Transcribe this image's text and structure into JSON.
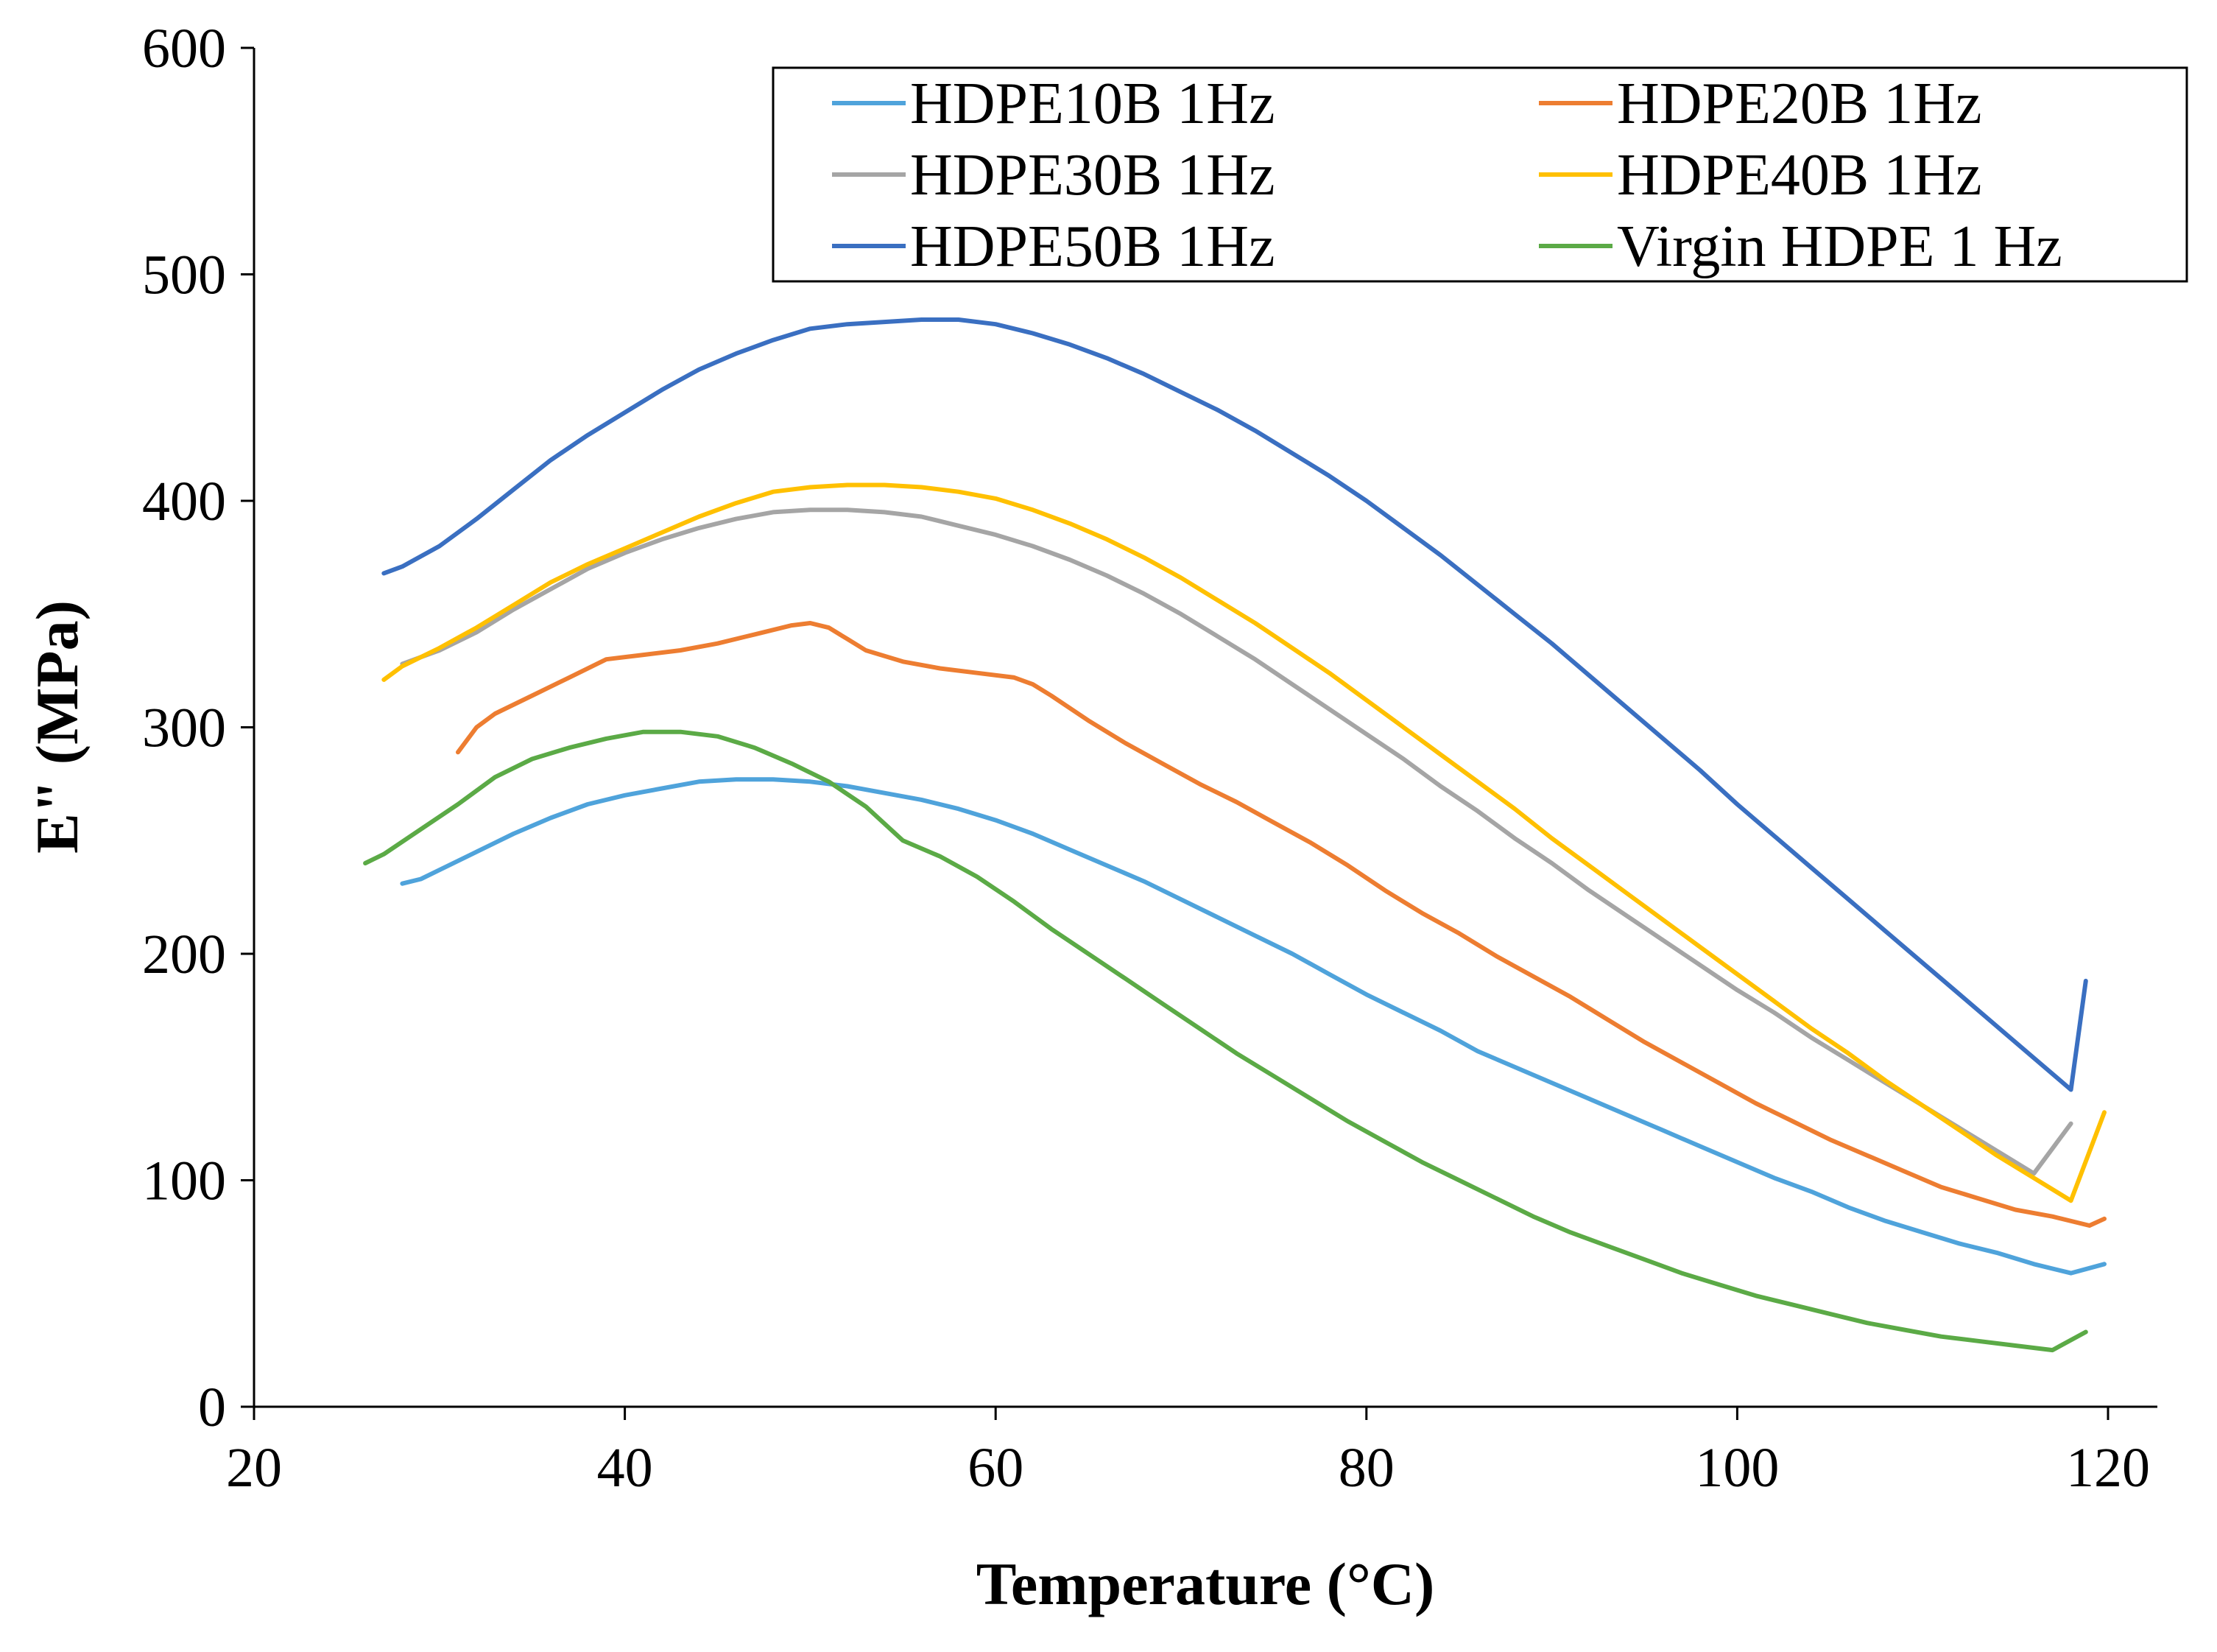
{
  "chart_data": {
    "type": "line",
    "title": "",
    "xlabel": "Temperature (°C)",
    "ylabel": "E\" (MPa)",
    "xlim": [
      20,
      120
    ],
    "ylim": [
      0,
      600
    ],
    "xticks": [
      20,
      40,
      60,
      80,
      100,
      120
    ],
    "yticks": [
      0,
      100,
      200,
      300,
      400,
      500,
      600
    ],
    "grid": false,
    "legend_position": "top-right",
    "series": [
      {
        "name": "HDPE10B 1Hz",
        "color": "#4FA3DB",
        "x": [
          28,
          29,
          30,
          32,
          34,
          36,
          38,
          40,
          42,
          44,
          46,
          48,
          50,
          52,
          54,
          56,
          58,
          60,
          62,
          64,
          66,
          68,
          70,
          72,
          74,
          76,
          78,
          80,
          82,
          84,
          86,
          88,
          90,
          92,
          94,
          96,
          98,
          100,
          102,
          104,
          106,
          108,
          110,
          112,
          114,
          116,
          118,
          119.8
        ],
        "y": [
          231,
          233,
          237,
          245,
          253,
          260,
          266,
          270,
          273,
          276,
          277,
          277,
          276,
          274,
          271,
          268,
          264,
          259,
          253,
          246,
          239,
          232,
          224,
          216,
          208,
          200,
          191,
          182,
          174,
          166,
          157,
          150,
          143,
          136,
          129,
          122,
          115,
          108,
          101,
          95,
          88,
          82,
          77,
          72,
          68,
          63,
          59,
          63
        ]
      },
      {
        "name": "HDPE20B 1Hz",
        "color": "#ED7D31",
        "x": [
          31,
          32,
          33,
          35,
          37,
          39,
          41,
          43,
          45,
          47,
          49,
          50,
          51,
          52,
          53,
          55,
          57,
          59,
          61,
          62,
          63,
          65,
          67,
          69,
          71,
          73,
          75,
          77,
          79,
          81,
          83,
          85,
          87,
          89,
          91,
          93,
          95,
          97,
          99,
          101,
          103,
          105,
          107,
          109,
          111,
          113,
          115,
          117,
          119,
          119.8
        ],
        "y": [
          289,
          300,
          306,
          314,
          322,
          330,
          332,
          334,
          337,
          341,
          345,
          346,
          344,
          339,
          334,
          329,
          326,
          324,
          322,
          319,
          314,
          303,
          293,
          284,
          275,
          267,
          258,
          249,
          239,
          228,
          218,
          209,
          199,
          190,
          181,
          171,
          161,
          152,
          143,
          134,
          126,
          118,
          111,
          104,
          97,
          92,
          87,
          84,
          80,
          83
        ]
      },
      {
        "name": "HDPE30B 1Hz",
        "color": "#A5A5A5",
        "x": [
          28,
          30,
          32,
          34,
          36,
          38,
          40,
          42,
          44,
          46,
          48,
          50,
          52,
          54,
          56,
          58,
          60,
          62,
          64,
          66,
          68,
          70,
          72,
          74,
          76,
          78,
          80,
          82,
          84,
          86,
          88,
          90,
          92,
          94,
          96,
          98,
          100,
          102,
          104,
          106,
          108,
          110,
          112,
          114,
          116,
          118
        ],
        "y": [
          328,
          334,
          342,
          352,
          361,
          370,
          377,
          383,
          388,
          392,
          395,
          396,
          396,
          395,
          393,
          389,
          385,
          380,
          374,
          367,
          359,
          350,
          340,
          330,
          319,
          308,
          297,
          286,
          274,
          263,
          251,
          240,
          228,
          217,
          206,
          195,
          184,
          174,
          163,
          153,
          143,
          133,
          123,
          113,
          103,
          125
        ]
      },
      {
        "name": "HDPE40B 1Hz",
        "color": "#FFC000",
        "x": [
          27,
          28,
          30,
          32,
          34,
          36,
          38,
          40,
          42,
          44,
          46,
          48,
          50,
          52,
          54,
          56,
          58,
          60,
          62,
          64,
          66,
          68,
          70,
          72,
          74,
          76,
          78,
          80,
          82,
          84,
          86,
          88,
          90,
          92,
          94,
          96,
          98,
          100,
          102,
          104,
          106,
          108,
          110,
          112,
          114,
          116,
          118,
          119.8
        ],
        "y": [
          321,
          327,
          335,
          344,
          354,
          364,
          372,
          379,
          386,
          393,
          399,
          404,
          406,
          407,
          407,
          406,
          404,
          401,
          396,
          390,
          383,
          375,
          366,
          356,
          346,
          335,
          324,
          312,
          300,
          288,
          276,
          264,
          251,
          239,
          227,
          215,
          203,
          191,
          179,
          167,
          156,
          144,
          133,
          122,
          111,
          101,
          91,
          130
        ]
      },
      {
        "name": "HDPE50B 1Hz",
        "color": "#3A6FC1",
        "x": [
          27,
          28,
          30,
          32,
          34,
          36,
          38,
          40,
          42,
          44,
          46,
          48,
          50,
          52,
          54,
          56,
          58,
          60,
          62,
          64,
          66,
          68,
          70,
          72,
          74,
          76,
          78,
          80,
          82,
          84,
          86,
          88,
          90,
          92,
          94,
          96,
          98,
          100,
          102,
          104,
          106,
          108,
          110,
          112,
          114,
          116,
          118,
          118.8
        ],
        "y": [
          368,
          371,
          380,
          392,
          405,
          418,
          429,
          439,
          449,
          458,
          465,
          471,
          476,
          478,
          479,
          480,
          480,
          478,
          474,
          469,
          463,
          456,
          448,
          440,
          431,
          421,
          411,
          400,
          388,
          376,
          363,
          350,
          337,
          323,
          309,
          295,
          281,
          266,
          252,
          238,
          224,
          210,
          196,
          182,
          168,
          154,
          140,
          188
        ]
      },
      {
        "name": "Virgin HDPE 1 Hz",
        "color": "#5BAA46",
        "x": [
          26,
          27,
          29,
          31,
          33,
          35,
          37,
          39,
          41,
          43,
          45,
          47,
          49,
          51,
          53,
          55,
          57,
          59,
          61,
          63,
          65,
          67,
          69,
          71,
          73,
          75,
          77,
          79,
          81,
          83,
          85,
          87,
          89,
          91,
          93,
          95,
          97,
          99,
          101,
          103,
          105,
          107,
          109,
          111,
          113,
          115,
          117,
          118.8
        ],
        "y": [
          240,
          244,
          255,
          266,
          278,
          286,
          291,
          295,
          298,
          298,
          296,
          291,
          284,
          276,
          265,
          250,
          243,
          234,
          223,
          211,
          200,
          189,
          178,
          167,
          156,
          146,
          136,
          126,
          117,
          108,
          100,
          92,
          84,
          77,
          71,
          65,
          59,
          54,
          49,
          45,
          41,
          37,
          34,
          31,
          29,
          27,
          25,
          33
        ]
      }
    ]
  }
}
